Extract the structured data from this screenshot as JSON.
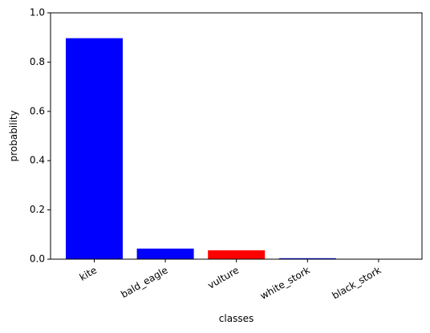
{
  "chart_data": {
    "type": "bar",
    "categories": [
      "kite",
      "bald_eagle",
      "vulture",
      "white_stork",
      "black_stork"
    ],
    "values": [
      0.897,
      0.043,
      0.036,
      0.004,
      0.001
    ],
    "bar_colors": [
      "#0000ff",
      "#0000ff",
      "#ff0000",
      "#0000ff",
      "#0000ff"
    ],
    "xlabel": "classes",
    "ylabel": "probability",
    "ylim": [
      0,
      1.0
    ],
    "yticks": [
      0.0,
      0.2,
      0.4,
      0.6,
      0.8,
      1.0
    ],
    "ytick_labels": [
      "0.0",
      "0.2",
      "0.4",
      "0.6",
      "0.8",
      "1.0"
    ],
    "grid": false,
    "legend": "none"
  }
}
